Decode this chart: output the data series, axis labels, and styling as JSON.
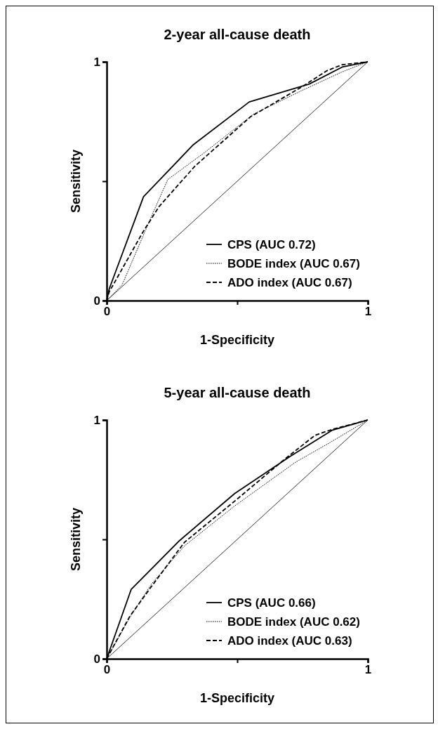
{
  "chart_data": [
    {
      "type": "line",
      "title": "2-year all-cause death",
      "xlabel": "1-Specificity",
      "ylabel": "Sensitivity",
      "xlim": [
        0,
        1
      ],
      "ylim": [
        0,
        1
      ],
      "xticks": [
        {
          "value": 0,
          "label": "0"
        },
        {
          "value": 0.5,
          "label": null
        },
        {
          "value": 1,
          "label": "1"
        }
      ],
      "yticks": [
        {
          "value": 0,
          "label": "0"
        },
        {
          "value": 0.5,
          "label": null
        },
        {
          "value": 1,
          "label": "1"
        }
      ],
      "legend": "bottom right",
      "grid": false,
      "marker": "none",
      "series": [
        {
          "name": "CPS (AUC 0.72)",
          "color": "#000000",
          "line_style": "solid",
          "x": [
            0,
            0.01,
            0.141,
            0.332,
            0.546,
            0.776,
            0.902,
            1
          ],
          "values": [
            0,
            0.05,
            0.435,
            0.653,
            0.832,
            0.907,
            0.978,
            1
          ]
        },
        {
          "name": "BODE index (AUC 0.67)",
          "color": "#000000",
          "line_style": "dotted",
          "x": [
            0,
            0.059,
            0.176,
            0.234,
            0.376,
            0.561,
            0.746,
            0.902,
            1
          ],
          "values": [
            0,
            0.066,
            0.364,
            0.507,
            0.621,
            0.78,
            0.879,
            0.958,
            1
          ]
        },
        {
          "name": "ADO index (AUC 0.67)",
          "color": "#000000",
          "line_style": "dashed",
          "x": [
            0,
            0.01,
            0.137,
            0.2,
            0.337,
            0.551,
            0.746,
            0.844,
            0.902,
            1
          ],
          "values": [
            0,
            0.037,
            0.284,
            0.393,
            0.562,
            0.77,
            0.894,
            0.963,
            0.988,
            1
          ]
        },
        {
          "color": "#000000",
          "line_style": "solid",
          "x": [
            0,
            1
          ],
          "values": [
            0,
            1
          ]
        }
      ]
    },
    {
      "type": "line",
      "title": "5-year all-cause death",
      "xlabel": "1-Specificity",
      "ylabel": "Sensitivity",
      "xlim": [
        0,
        1
      ],
      "ylim": [
        0,
        1
      ],
      "xticks": [
        {
          "value": 0,
          "label": "0"
        },
        {
          "value": 0.5,
          "label": null
        },
        {
          "value": 1,
          "label": "1"
        }
      ],
      "yticks": [
        {
          "value": 0,
          "label": "0"
        },
        {
          "value": 0.5,
          "label": null
        },
        {
          "value": 1,
          "label": "1"
        }
      ],
      "legend": "bottom right",
      "grid": false,
      "marker": "none",
      "series": [
        {
          "name": "CPS (AUC 0.66)",
          "color": "#000000",
          "line_style": "solid",
          "x": [
            0,
            0.094,
            0.279,
            0.49,
            0.702,
            0.865,
            1
          ],
          "values": [
            0,
            0.291,
            0.495,
            0.692,
            0.847,
            0.958,
            1
          ]
        },
        {
          "name": "BODE index (AUC 0.62)",
          "color": "#000000",
          "line_style": "dotted",
          "x": [
            0,
            0.096,
            0.173,
            0.298,
            0.49,
            0.723,
            0.856,
            1
          ],
          "values": [
            0,
            0.187,
            0.315,
            0.473,
            0.64,
            0.823,
            0.906,
            1
          ]
        },
        {
          "name": "ADO index (AUC 0.63)",
          "color": "#000000",
          "line_style": "dashed",
          "x": [
            0,
            0.088,
            0.173,
            0.298,
            0.49,
            0.683,
            0.798,
            0.865,
            1
          ],
          "values": [
            0,
            0.177,
            0.305,
            0.488,
            0.66,
            0.837,
            0.936,
            0.961,
            1
          ]
        },
        {
          "color": "#000000",
          "line_style": "solid",
          "x": [
            0,
            1
          ],
          "values": [
            0,
            1
          ]
        }
      ]
    }
  ]
}
